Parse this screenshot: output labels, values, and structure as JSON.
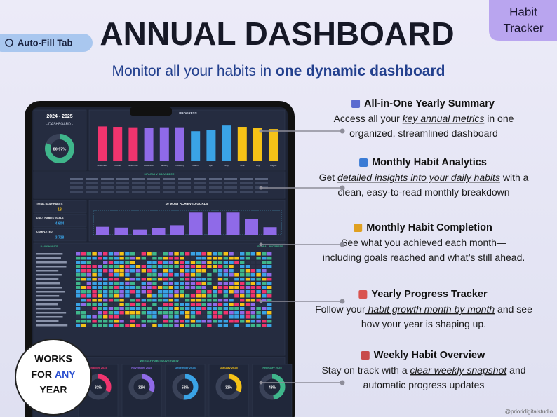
{
  "header": {
    "badge": "Auto-Fill Tab",
    "title": "ANNUAL DASHBOARD",
    "subtitle_plain": "Monitor all your habits in ",
    "subtitle_bold": "one dynamic dashboard",
    "corner_tag": [
      "Habit",
      "Tracker"
    ]
  },
  "tablet": {
    "year": "2024 - 2025",
    "label": "- DASHBOARD -",
    "overall": {
      "value": 80.97,
      "label": "80.97%"
    },
    "yearly_chart": {
      "title": "PROGRESS",
      "months": [
        "September",
        "October",
        "November",
        "December",
        "January",
        "February",
        "March",
        "April",
        "May",
        "June",
        "July",
        "August"
      ],
      "values": [
        80,
        79,
        78,
        76,
        78,
        78,
        69,
        71,
        82,
        79,
        77,
        74
      ],
      "colors": [
        "#f0346e",
        "#f0346e",
        "#f0346e",
        "#8f6ae8",
        "#8f6ae8",
        "#8f6ae8",
        "#3aa3e6",
        "#3aa3e6",
        "#3aa3e6",
        "#f5c217",
        "#f5c217",
        "#f5c217"
      ]
    },
    "monthly_title": "MONTHLY PROGRESS",
    "stats": [
      {
        "label": "TOTAL DAILY HABITS",
        "value": "18"
      },
      {
        "label": "DAILY HABITS GOALS",
        "value": "4,604"
      },
      {
        "label": "COMPLETED",
        "value": "3,728"
      }
    ],
    "goals_chart": {
      "title": "10 MOST ACHIEVED GOALS",
      "values": [
        20,
        18,
        13,
        16,
        24,
        56,
        56,
        56,
        40,
        19
      ],
      "color": "#8f6ae8"
    },
    "daily_title": "DAILY HABITS",
    "global_title": "GLOBAL PROGRESS",
    "weekly_title": "WEEKLY HABITS OVERVIEW",
    "weekly": [
      {
        "month": "October 2024",
        "value": 32,
        "label": "32%",
        "color": "#f0346e"
      },
      {
        "month": "November 2024",
        "value": 32,
        "label": "32%",
        "color": "#8f6ae8"
      },
      {
        "month": "December 2024",
        "value": 52,
        "label": "52%",
        "color": "#3aa3e6"
      },
      {
        "month": "January 2025",
        "value": 32,
        "label": "32%",
        "color": "#f5c217"
      },
      {
        "month": "February 2025",
        "value": 48,
        "label": "48%",
        "color": "#3fb68b"
      }
    ]
  },
  "features": [
    {
      "title": "All-in-One Yearly Summary",
      "lines": [
        [
          "Access all your ",
          {
            "text": "key annual metrics",
            "style": "underline"
          },
          " in one"
        ],
        [
          "organized, streamlined dashboard"
        ]
      ]
    },
    {
      "title": "Monthly Habit Analytics",
      "lines": [
        [
          "Get ",
          {
            "text": "detailed insights into your daily habits",
            "style": "underline"
          },
          " with a"
        ],
        [
          "clean, easy-to-read monthly breakdown"
        ]
      ]
    },
    {
      "title": "Monthly Habit Completion",
      "lines": [
        [
          "See what you achieved each month—"
        ],
        [
          "including goals reached and what’s still ahead."
        ]
      ]
    },
    {
      "title": "Yearly Progress Tracker",
      "lines": [
        [
          "Follow your",
          {
            "text": " habit growth month by month",
            "style": "underline"
          },
          " and see"
        ],
        [
          "how your year is shaping up."
        ]
      ]
    },
    {
      "title": "Weekly Habit Overview",
      "lines": [
        [
          "Stay on track with a ",
          {
            "text": "clear weekly snapshot",
            "style": "underline"
          },
          " and"
        ],
        [
          "automatic progress updates"
        ]
      ]
    }
  ],
  "year_badge": [
    "WORKS",
    "FOR",
    "ANY",
    "YEAR"
  ],
  "credit": "@prioridigitalstudio"
}
